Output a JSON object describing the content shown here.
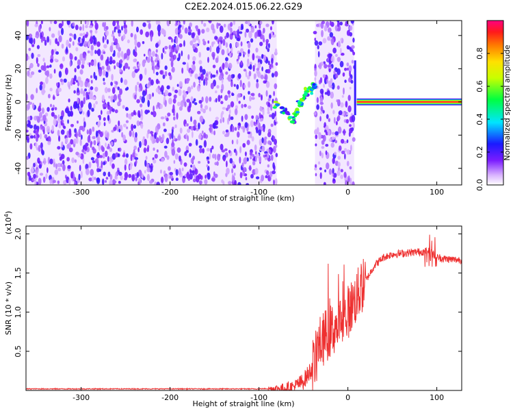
{
  "title": "C2E2.2024.015.06.22.G29",
  "chart_data": [
    {
      "type": "heatmap",
      "xlabel": "Height of straight line (km)",
      "ylabel": "Frequency (Hz)",
      "xlim": [
        -362,
        128
      ],
      "ylim": [
        -50,
        49
      ],
      "xticks": [
        -300,
        -200,
        -100,
        0,
        100
      ],
      "yticks": [
        -40,
        -20,
        0,
        20,
        40
      ],
      "colorbar": {
        "label": "Normalized spectral amplitude",
        "range": [
          0,
          1
        ],
        "ticks": [
          "0.0",
          "0.2",
          "0.4",
          "0.6",
          "0.8"
        ],
        "colormap": "rainbow (white-violet-blue-cyan-green-yellow-red-magenta)"
      },
      "features": [
        {
          "name": "scatter",
          "x_range": [
            -362,
            -80
          ],
          "f_range": [
            -50,
            49
          ],
          "amplitude": 0.1
        },
        {
          "name": "scatter",
          "x_range": [
            -37,
            7
          ],
          "f_range": [
            -50,
            49
          ],
          "amplitude": 0.1
        },
        {
          "name": "tone",
          "x_range": [
            10,
            128
          ],
          "frequency": 0,
          "amplitude": 0.95
        },
        {
          "name": "transition",
          "x_range": [
            -80,
            -38
          ],
          "f_range": [
            -13,
            10
          ],
          "amplitude": 0.4
        }
      ]
    },
    {
      "type": "line",
      "xlabel": "Height of straight line (km)",
      "ylabel": "SNR (10 * v/v)",
      "y_scale_label": "(x10",
      "y_scale_exp": "4",
      "y_scale_close": ")",
      "xlim": [
        -362,
        128
      ],
      "ylim": [
        0,
        2.1
      ],
      "xticks": [
        -300,
        -200,
        -100,
        0,
        100
      ],
      "yticks": [
        "0.5",
        "1.0",
        "1.5",
        "2.0"
      ],
      "color": "#ee3030",
      "x": [
        -362,
        -300,
        -200,
        -100,
        -70,
        -60,
        -50,
        -45,
        -40,
        -35,
        -32,
        -28,
        -25,
        -20,
        -15,
        -10,
        -5,
        0,
        5,
        10,
        15,
        20,
        25,
        30,
        35,
        40,
        50,
        60,
        70,
        80,
        90,
        95,
        100,
        110,
        120,
        128
      ],
      "y": [
        0.02,
        0.02,
        0.02,
        0.02,
        0.03,
        0.05,
        0.12,
        0.2,
        0.3,
        0.45,
        0.6,
        0.65,
        0.7,
        0.75,
        0.8,
        0.85,
        0.9,
        1.0,
        1.1,
        1.2,
        1.3,
        1.4,
        1.5,
        1.6,
        1.65,
        1.7,
        1.74,
        1.75,
        1.76,
        1.77,
        1.78,
        1.75,
        1.7,
        1.68,
        1.67,
        1.67
      ]
    }
  ]
}
